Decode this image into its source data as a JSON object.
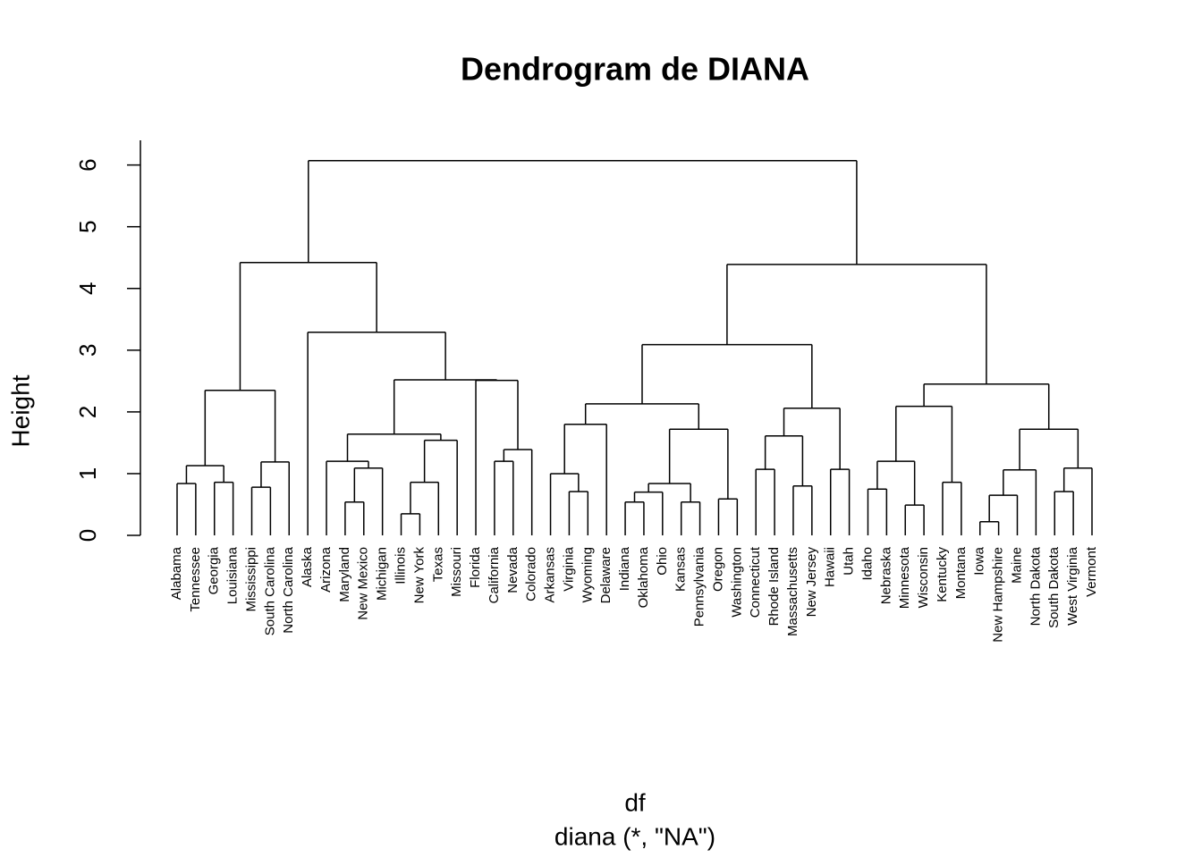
{
  "chart_data": {
    "type": "dendrogram",
    "title": "Dendrogram de DIANA",
    "xlabel": "df",
    "subtitle": "diana (*, \"NA\")",
    "ylabel": "Height",
    "ylim": [
      0,
      6.4
    ],
    "yticks": [
      0,
      1,
      2,
      3,
      4,
      5,
      6
    ],
    "color": "#000000",
    "tree": {
      "height": 6.07,
      "children": [
        {
          "height": 4.42,
          "children": [
            {
              "height": 2.35,
              "children": [
                {
                  "height": 1.13,
                  "children": [
                    {
                      "height": 0.84,
                      "children": [
                        {
                          "label": "Alabama"
                        },
                        {
                          "label": "Tennessee"
                        }
                      ]
                    },
                    {
                      "height": 0.86,
                      "children": [
                        {
                          "label": "Georgia"
                        },
                        {
                          "label": "Louisiana"
                        }
                      ]
                    }
                  ]
                },
                {
                  "height": 1.19,
                  "children": [
                    {
                      "height": 0.78,
                      "children": [
                        {
                          "label": "Mississippi"
                        },
                        {
                          "label": "South Carolina"
                        }
                      ]
                    },
                    {
                      "label": "North Carolina"
                    }
                  ]
                }
              ]
            },
            {
              "height": 3.29,
              "children": [
                {
                  "label": "Alaska"
                },
                {
                  "height": 2.52,
                  "children": [
                    {
                      "height": 1.64,
                      "children": [
                        {
                          "height": 1.2,
                          "children": [
                            {
                              "label": "Arizona"
                            },
                            {
                              "height": 1.09,
                              "children": [
                                {
                                  "height": 0.54,
                                  "children": [
                                    {
                                      "label": "Maryland"
                                    },
                                    {
                                      "label": "New Mexico"
                                    }
                                  ]
                                },
                                {
                                  "label": "Michigan"
                                }
                              ]
                            }
                          ]
                        },
                        {
                          "height": 1.54,
                          "children": [
                            {
                              "height": 0.86,
                              "children": [
                                {
                                  "height": 0.35,
                                  "children": [
                                    {
                                      "label": "Illinois"
                                    },
                                    {
                                      "label": "New York"
                                    }
                                  ]
                                },
                                {
                                  "label": "Texas"
                                }
                              ]
                            },
                            {
                              "label": "Missouri"
                            }
                          ]
                        }
                      ]
                    },
                    {
                      "height": 2.51,
                      "children": [
                        {
                          "label": "Florida"
                        },
                        {
                          "height": 1.39,
                          "children": [
                            {
                              "height": 1.2,
                              "children": [
                                {
                                  "label": "California"
                                },
                                {
                                  "label": "Nevada"
                                }
                              ]
                            },
                            {
                              "label": "Colorado"
                            }
                          ]
                        }
                      ]
                    }
                  ]
                }
              ]
            }
          ]
        },
        {
          "height": 4.39,
          "children": [
            {
              "height": 3.09,
              "children": [
                {
                  "height": 2.13,
                  "children": [
                    {
                      "height": 1.8,
                      "children": [
                        {
                          "height": 1.0,
                          "children": [
                            {
                              "label": "Arkansas"
                            },
                            {
                              "height": 0.71,
                              "children": [
                                {
                                  "label": "Virginia"
                                },
                                {
                                  "label": "Wyoming"
                                }
                              ]
                            }
                          ]
                        },
                        {
                          "label": "Delaware"
                        }
                      ]
                    },
                    {
                      "height": 1.72,
                      "children": [
                        {
                          "height": 0.84,
                          "children": [
                            {
                              "height": 0.7,
                              "children": [
                                {
                                  "height": 0.54,
                                  "children": [
                                    {
                                      "label": "Indiana"
                                    },
                                    {
                                      "label": "Oklahoma"
                                    }
                                  ]
                                },
                                {
                                  "label": "Ohio"
                                }
                              ]
                            },
                            {
                              "height": 0.54,
                              "children": [
                                {
                                  "label": "Kansas"
                                },
                                {
                                  "label": "Pennsylvania"
                                }
                              ]
                            }
                          ]
                        },
                        {
                          "height": 0.59,
                          "children": [
                            {
                              "label": "Oregon"
                            },
                            {
                              "label": "Washington"
                            }
                          ]
                        }
                      ]
                    }
                  ]
                },
                {
                  "height": 2.06,
                  "children": [
                    {
                      "height": 1.61,
                      "children": [
                        {
                          "height": 1.07,
                          "children": [
                            {
                              "label": "Connecticut"
                            },
                            {
                              "label": "Rhode Island"
                            }
                          ]
                        },
                        {
                          "height": 0.8,
                          "children": [
                            {
                              "label": "Massachusetts"
                            },
                            {
                              "label": "New Jersey"
                            }
                          ]
                        }
                      ]
                    },
                    {
                      "height": 1.07,
                      "children": [
                        {
                          "label": "Hawaii"
                        },
                        {
                          "label": "Utah"
                        }
                      ]
                    }
                  ]
                }
              ]
            },
            {
              "height": 2.45,
              "children": [
                {
                  "height": 2.09,
                  "children": [
                    {
                      "height": 1.2,
                      "children": [
                        {
                          "height": 0.75,
                          "children": [
                            {
                              "label": "Idaho"
                            },
                            {
                              "label": "Nebraska"
                            }
                          ]
                        },
                        {
                          "height": 0.49,
                          "children": [
                            {
                              "label": "Minnesota"
                            },
                            {
                              "label": "Wisconsin"
                            }
                          ]
                        }
                      ]
                    },
                    {
                      "height": 0.86,
                      "children": [
                        {
                          "label": "Kentucky"
                        },
                        {
                          "label": "Montana"
                        }
                      ]
                    }
                  ]
                },
                {
                  "height": 1.72,
                  "children": [
                    {
                      "height": 1.06,
                      "children": [
                        {
                          "height": 0.65,
                          "children": [
                            {
                              "height": 0.22,
                              "children": [
                                {
                                  "label": "Iowa"
                                },
                                {
                                  "label": "New Hampshire"
                                }
                              ]
                            },
                            {
                              "label": "Maine"
                            }
                          ]
                        },
                        {
                          "label": "North Dakota"
                        }
                      ]
                    },
                    {
                      "height": 1.09,
                      "children": [
                        {
                          "height": 0.71,
                          "children": [
                            {
                              "label": "South Dakota"
                            },
                            {
                              "label": "West Virginia"
                            }
                          ]
                        },
                        {
                          "label": "Vermont"
                        }
                      ]
                    }
                  ]
                }
              ]
            }
          ]
        }
      ]
    }
  }
}
